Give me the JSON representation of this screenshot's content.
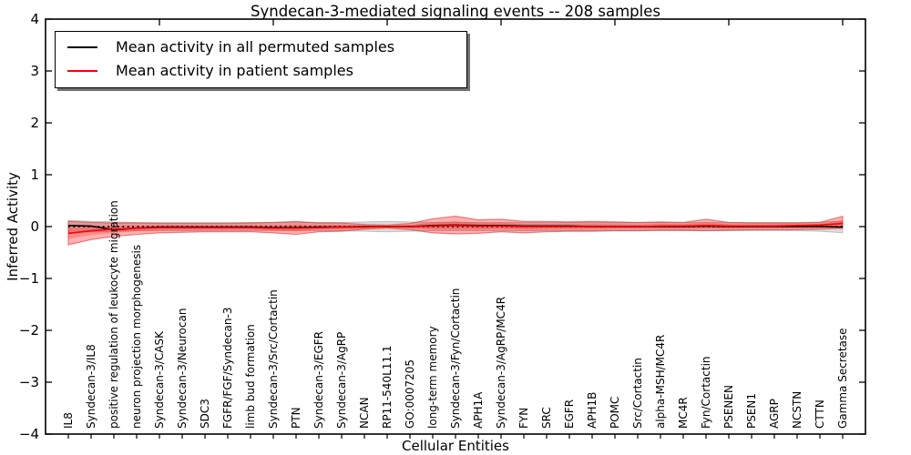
{
  "figure": {
    "title": "Syndecan-3-mediated signaling events -- 208 samples",
    "xlabel": "Cellular Entities",
    "ylabel": "Inferred Activity"
  },
  "legend": {
    "items": [
      {
        "label": "Mean activity in all permuted samples",
        "color": "#000000"
      },
      {
        "label": "Mean activity in patient samples",
        "color": "#ff0000"
      }
    ]
  },
  "axes": {
    "y_ticks": [
      {
        "value": 4,
        "label": "4"
      },
      {
        "value": 3,
        "label": "3"
      },
      {
        "value": 2,
        "label": "2"
      },
      {
        "value": 1,
        "label": "1"
      },
      {
        "value": 0,
        "label": "0"
      },
      {
        "value": -1,
        "label": "−1"
      },
      {
        "value": -2,
        "label": "−2"
      },
      {
        "value": -3,
        "label": "−3"
      },
      {
        "value": -4,
        "label": "−4"
      }
    ],
    "top_tick_positions": [
      5,
      10,
      15,
      20,
      25,
      30,
      35
    ]
  },
  "colors": {
    "line_permuted": "#000000",
    "line_patient": "#ff0000",
    "band_patient": "rgba(255,0,0,0.30)",
    "band_patient_inner": "rgba(255,0,0,0.22)",
    "band_patient_edge": "rgba(220,40,40,0.55)",
    "band_permuted": "rgba(130,130,130,0.28)",
    "band_permuted_edge": "rgba(110,110,110,0.35)",
    "zero_line": "#000000",
    "frame": "#000000",
    "background": "#ffffff"
  },
  "chart_data": {
    "type": "line",
    "title": "Syndecan-3-mediated signaling events -- 208 samples",
    "xlabel": "Cellular Entities",
    "ylabel": "Inferred Activity",
    "ylim": [
      -4,
      4
    ],
    "xlim": [
      0,
      36
    ],
    "grid": false,
    "legend_position": "upper left",
    "zero_reference_line": "dotted",
    "categories": [
      "IL8",
      "Syndecan-3/IL8",
      "positive regulation of leukocyte migration",
      "neuron projection morphogenesis",
      "Syndecan-3/CASK",
      "Syndecan-3/Neurocan",
      "SDC3",
      "FGFR/FGF/Syndecan-3",
      "limb bud formation",
      "Syndecan-3/Src/Cortactin",
      "PTN",
      "Syndecan-3/EGFR",
      "Syndecan-3/AgRP",
      "NCAN",
      "RP11-540L11.1",
      "GO:0007205",
      "long-term memory",
      "Syndecan-3/Fyn/Cortactin",
      "APH1A",
      "Syndecan-3/AgRP/MC4R",
      "FYN",
      "SRC",
      "EGFR",
      "APH1B",
      "POMC",
      "Src/Cortactin",
      "alpha-MSH/MC4R",
      "MC4R",
      "Fyn/Cortactin",
      "PSENEN",
      "PSEN1",
      "AGRP",
      "NCSTN",
      "CTTN",
      "Gamma Secretase"
    ],
    "series": [
      {
        "name": "Mean activity in all permuted samples",
        "color": "#000000",
        "values": [
          0.02,
          0.01,
          -0.06,
          -0.03,
          -0.01,
          -0.01,
          -0.01,
          -0.01,
          -0.01,
          -0.02,
          -0.02,
          -0.01,
          -0.01,
          0,
          0,
          0,
          0.02,
          0.03,
          0.02,
          0.02,
          0.01,
          0.01,
          0.01,
          0,
          0,
          0,
          0,
          0,
          0.01,
          0,
          0,
          0,
          0,
          0,
          -0.01
        ]
      },
      {
        "name": "Mean activity in patient samples",
        "color": "#ff0000",
        "values": [
          -0.13,
          -0.08,
          -0.05,
          -0.03,
          -0.02,
          -0.02,
          -0.02,
          -0.02,
          -0.02,
          -0.03,
          -0.03,
          -0.02,
          -0.01,
          -0.01,
          0,
          0,
          0.01,
          0.02,
          0.01,
          0.01,
          0,
          0,
          0,
          0,
          0,
          0,
          0.01,
          0.01,
          0.02,
          0.01,
          0.01,
          0.01,
          0.02,
          0.03,
          0.06
        ]
      }
    ],
    "bands": [
      {
        "name": "permuted samples ± std",
        "top": [
          0.12,
          0.1,
          0.09,
          0.08,
          0.08,
          0.08,
          0.08,
          0.08,
          0.08,
          0.08,
          0.08,
          0.08,
          0.08,
          0.09,
          0.1,
          0.09,
          0.08,
          0.08,
          0.08,
          0.08,
          0.08,
          0.08,
          0.08,
          0.08,
          0.08,
          0.08,
          0.08,
          0.08,
          0.08,
          0.08,
          0.08,
          0.08,
          0.08,
          0.09,
          0.1
        ],
        "bottom": [
          -0.12,
          -0.1,
          -0.09,
          -0.08,
          -0.08,
          -0.08,
          -0.08,
          -0.08,
          -0.08,
          -0.08,
          -0.08,
          -0.08,
          -0.08,
          -0.09,
          -0.1,
          -0.09,
          -0.08,
          -0.08,
          -0.08,
          -0.08,
          -0.08,
          -0.08,
          -0.08,
          -0.08,
          -0.08,
          -0.08,
          -0.08,
          -0.08,
          -0.08,
          -0.08,
          -0.08,
          -0.08,
          -0.08,
          -0.09,
          -0.12
        ]
      },
      {
        "name": "patient samples ± std",
        "top": [
          0.1,
          0.08,
          0.07,
          0.07,
          0.06,
          0.06,
          0.06,
          0.06,
          0.07,
          0.08,
          0.1,
          0.07,
          0.07,
          0.04,
          0.03,
          0.06,
          0.15,
          0.2,
          0.13,
          0.14,
          0.1,
          0.1,
          0.09,
          0.1,
          0.09,
          0.08,
          0.09,
          0.08,
          0.14,
          0.08,
          0.07,
          0.07,
          0.07,
          0.08,
          0.2
        ],
        "bottom": [
          -0.35,
          -0.25,
          -0.19,
          -0.15,
          -0.12,
          -0.11,
          -0.1,
          -0.1,
          -0.1,
          -0.12,
          -0.15,
          -0.1,
          -0.09,
          -0.05,
          -0.03,
          -0.06,
          -0.12,
          -0.14,
          -0.13,
          -0.1,
          -0.12,
          -0.1,
          -0.09,
          -0.09,
          -0.08,
          -0.08,
          -0.07,
          -0.07,
          -0.08,
          -0.07,
          -0.06,
          -0.06,
          -0.06,
          -0.05,
          -0.03
        ]
      }
    ]
  }
}
